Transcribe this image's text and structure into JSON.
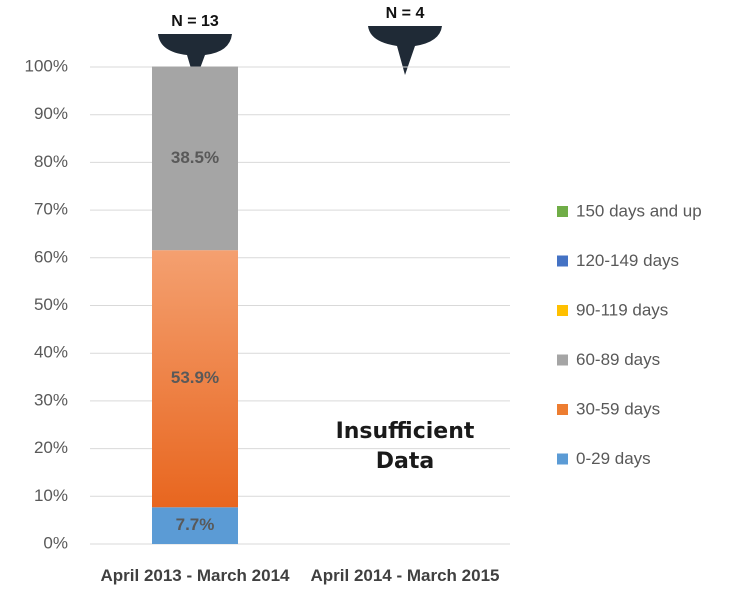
{
  "chart_data": {
    "type": "stacked_bar",
    "categories": [
      "April 2013 - March 2014",
      "April 2014 - March 2015"
    ],
    "series": [
      {
        "name": "0-29 days",
        "color": "#5b9bd5",
        "values": [
          7.7,
          null
        ],
        "value_labels": [
          "7.7%",
          null
        ]
      },
      {
        "name": "30-59 days",
        "color": "#ed7d31",
        "values": [
          53.9,
          null
        ],
        "value_labels": [
          "53.9%",
          null
        ]
      },
      {
        "name": "60-89 days",
        "color": "#a5a5a5",
        "values": [
          38.5,
          null
        ],
        "value_labels": [
          "38.5%",
          null
        ]
      },
      {
        "name": "90-119 days",
        "color": "#ffc000",
        "values": [
          0,
          null
        ]
      },
      {
        "name": "120-149 days",
        "color": "#4472c4",
        "values": [
          0,
          null
        ]
      },
      {
        "name": "150 days and up",
        "color": "#70ad47",
        "values": [
          0,
          null
        ]
      }
    ],
    "ylim": [
      0,
      100
    ],
    "yticks": [
      {
        "value": 0,
        "label": "0%"
      },
      {
        "value": 10,
        "label": "10%"
      },
      {
        "value": 20,
        "label": "20%"
      },
      {
        "value": 30,
        "label": "30%"
      },
      {
        "value": 40,
        "label": "40%"
      },
      {
        "value": 50,
        "label": "50%"
      },
      {
        "value": 60,
        "label": "60%"
      },
      {
        "value": 70,
        "label": "70%"
      },
      {
        "value": 80,
        "label": "80%"
      },
      {
        "value": 90,
        "label": "90%"
      },
      {
        "value": 100,
        "label": "100%"
      }
    ],
    "grid": true,
    "legend": "right",
    "annotations": [
      "N = 13",
      "N = 4",
      "Insufficient Data"
    ]
  }
}
